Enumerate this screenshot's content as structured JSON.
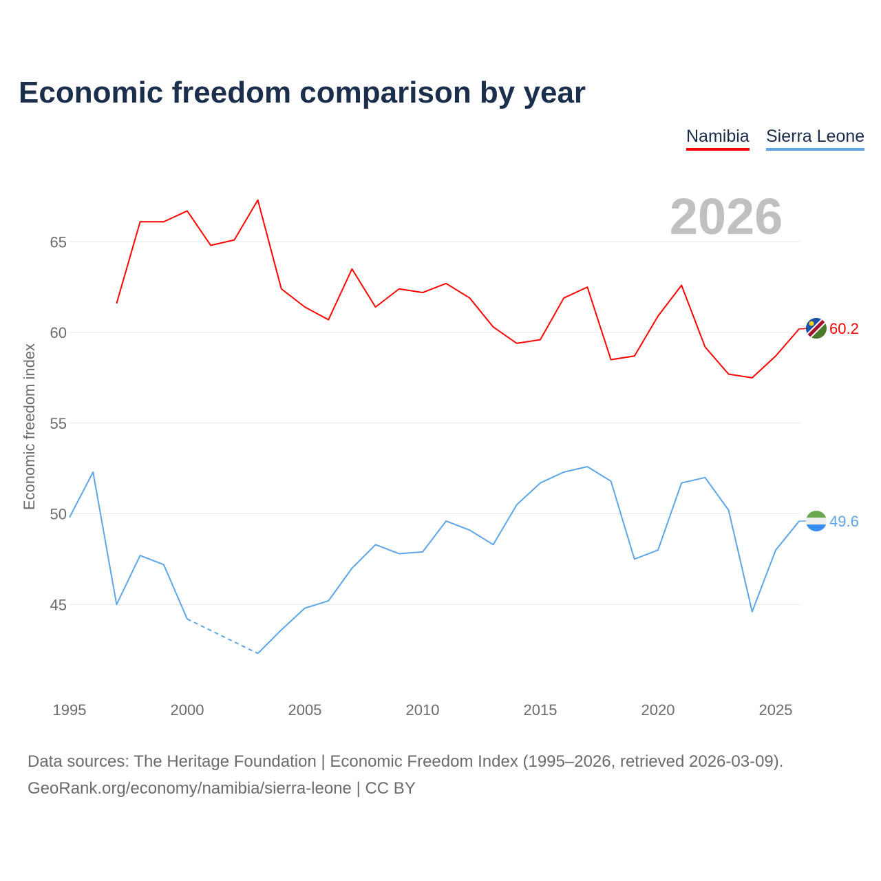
{
  "chart_data": {
    "type": "line",
    "title": "Economic freedom comparison by year",
    "ylabel": "Economic freedom index",
    "xlabel": "",
    "year_watermark": "2026",
    "ylim": [
      40.5,
      68
    ],
    "xlim": [
      1995,
      2026
    ],
    "yticks": [
      45,
      50,
      55,
      60,
      65
    ],
    "xticks": [
      1995,
      2000,
      2005,
      2010,
      2015,
      2020,
      2025
    ],
    "grid": true,
    "legend_position": "top-right",
    "x": [
      1995,
      1996,
      1997,
      1998,
      1999,
      2000,
      2001,
      2002,
      2003,
      2004,
      2005,
      2006,
      2007,
      2008,
      2009,
      2010,
      2011,
      2012,
      2013,
      2014,
      2015,
      2016,
      2017,
      2018,
      2019,
      2020,
      2021,
      2022,
      2023,
      2024,
      2025,
      2026
    ],
    "series": [
      {
        "name": "Namibia",
        "color": "#ff0000",
        "end_label": "60.2",
        "values": [
          null,
          null,
          61.6,
          66.1,
          66.1,
          66.7,
          64.8,
          65.1,
          67.3,
          62.4,
          61.4,
          60.7,
          63.5,
          61.4,
          62.4,
          62.2,
          62.7,
          61.9,
          60.3,
          59.4,
          59.6,
          61.9,
          62.5,
          58.5,
          58.7,
          60.9,
          62.6,
          59.2,
          57.7,
          57.5,
          58.7,
          60.2
        ]
      },
      {
        "name": "Sierra Leone",
        "color": "#5da5e8",
        "end_label": "49.6",
        "values": [
          49.8,
          52.3,
          45.0,
          47.7,
          47.2,
          44.2,
          null,
          null,
          42.3,
          43.6,
          44.8,
          45.2,
          47.0,
          48.3,
          47.8,
          47.9,
          49.6,
          49.1,
          48.3,
          50.5,
          51.7,
          52.3,
          52.6,
          51.8,
          47.5,
          48.0,
          51.7,
          52.0,
          50.2,
          44.6,
          48.0,
          49.6
        ]
      }
    ]
  },
  "footer": {
    "line1": "Data sources: The Heritage Foundation | Economic Freedom Index (1995–2026, retrieved 2026-03-09).",
    "line2": "GeoRank.org/economy/namibia/sierra-leone | CC BY"
  }
}
